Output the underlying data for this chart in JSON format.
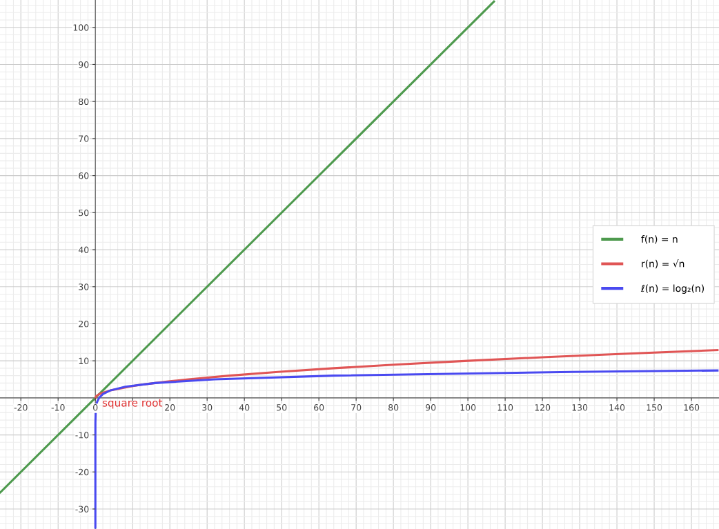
{
  "chart_data": {
    "type": "line",
    "series": [
      {
        "name": "f(n) = n",
        "color": "#4e9a4e",
        "x": [
          -25.5,
          0,
          107
        ],
        "values": [
          -25.5,
          0,
          107
        ]
      },
      {
        "name": "r(n) = √n",
        "color": "#e05555",
        "x": [
          0,
          0.25,
          1,
          2,
          4,
          6,
          9,
          12,
          16,
          20,
          25,
          36,
          49,
          64,
          81,
          100,
          121,
          144,
          167
        ],
        "values": [
          0,
          0.5,
          1,
          1.4,
          2,
          2.4,
          3,
          3.5,
          4,
          4.5,
          5,
          6,
          7,
          8,
          9,
          10,
          11,
          12,
          12.9
        ]
      },
      {
        "name": "ℓ(n) = log₂(n)",
        "color": "#4a4af0",
        "x": [
          3e-11,
          1e-07,
          0.0001,
          0.01,
          0.1,
          0.25,
          0.5,
          1,
          2,
          4,
          8,
          16,
          32,
          64,
          128,
          167
        ],
        "values": [
          -35,
          -23.3,
          -13.3,
          -6.6,
          -3.3,
          -2,
          -1,
          0,
          1,
          2,
          3,
          4,
          5,
          6,
          7,
          7.4
        ]
      }
    ],
    "xlim": [
      -25.6,
      167.4
    ],
    "ylim": [
      -35.4,
      107.4
    ],
    "xticks": [
      -20,
      -10,
      0,
      {
        "value": 10,
        "label": null
      },
      20,
      30,
      40,
      50,
      60,
      70,
      80,
      90,
      100,
      110,
      120,
      130,
      140,
      150,
      160
    ],
    "yticks": [
      -30,
      -20,
      -10,
      10,
      20,
      30,
      40,
      50,
      60,
      70,
      80,
      90,
      100
    ],
    "grid": true,
    "legend": "right",
    "marker": "none",
    "line_style": "solid",
    "annotations": [
      "square root"
    ]
  }
}
